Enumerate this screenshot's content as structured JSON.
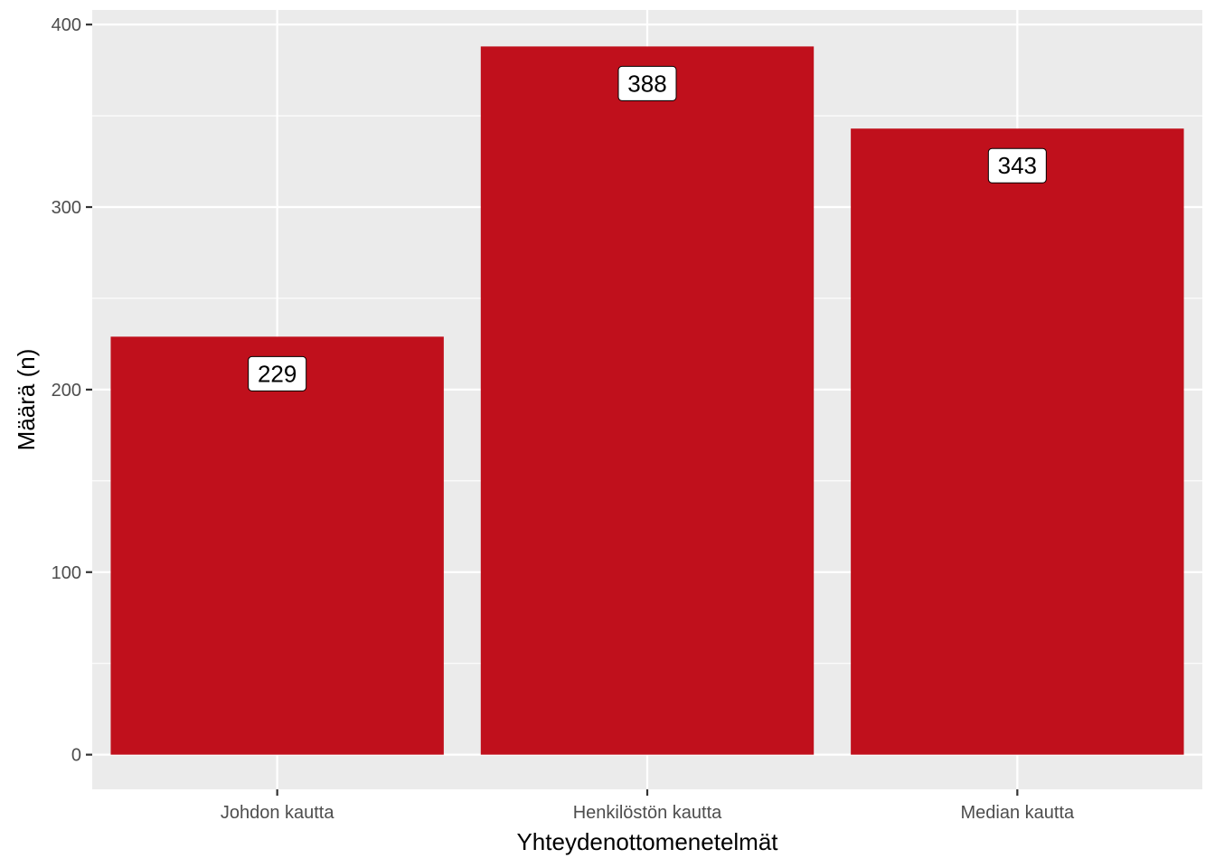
{
  "chart_data": {
    "type": "bar",
    "categories": [
      "Johdon kautta",
      "Henkilöstön kautta",
      "Median kautta"
    ],
    "values": [
      229,
      388,
      343
    ],
    "data_labels": [
      "229",
      "388",
      "343"
    ],
    "xlabel": "Yhteydenottomenetelmät",
    "ylabel": "Määrä (n)",
    "ylim": [
      -19,
      408
    ],
    "y_ticks": [
      0,
      100,
      200,
      300,
      400
    ],
    "y_tick_labels": [
      "0",
      "100",
      "200",
      "300",
      "400"
    ],
    "grid": true,
    "colors": {
      "bar": "#C0101C",
      "panel_background": "#EBEBEB",
      "grid": "#FFFFFF",
      "label_background": "#FFFFFF",
      "label_border": "#000000"
    }
  }
}
